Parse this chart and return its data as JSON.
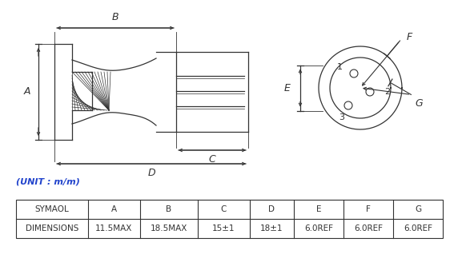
{
  "bg_color": "#ffffff",
  "line_color": "#333333",
  "table_header": [
    "SYMAOL",
    "A",
    "B",
    "C",
    "D",
    "E",
    "F",
    "G"
  ],
  "table_row": [
    "DIMENSIONS",
    "11.5MAX",
    "18.5MAX",
    "15±1",
    "18±1",
    "6.0REF",
    "6.0REF",
    "6.0REF"
  ],
  "unit_text": "(UNIT : m/m)",
  "title_fontsize": 8,
  "table_fontsize": 7.5
}
